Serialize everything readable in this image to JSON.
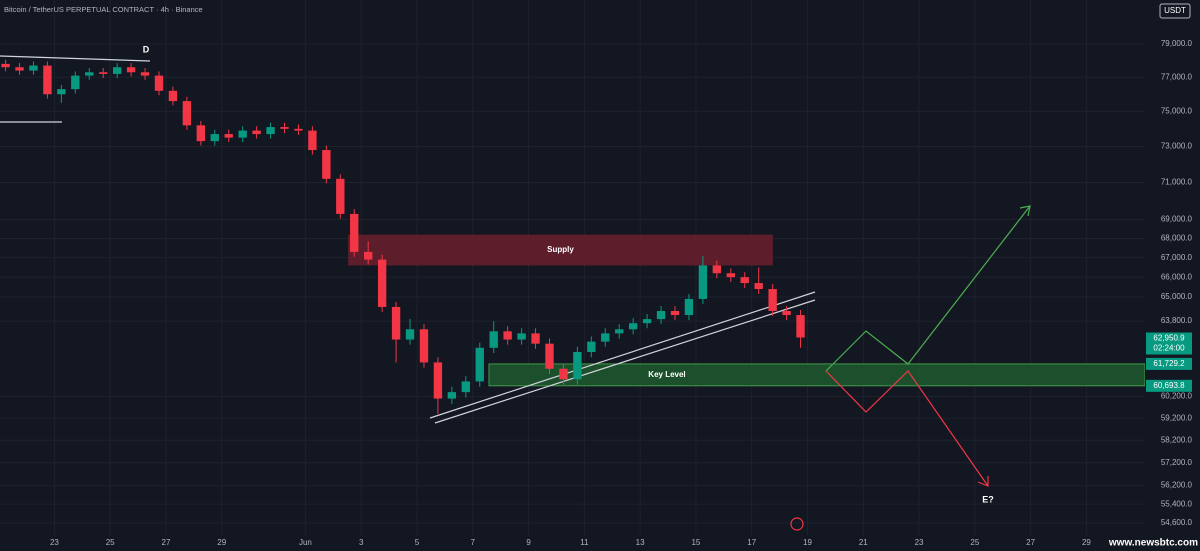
{
  "chart_data": {
    "type": "candlestick",
    "title": "Bitcoin / TetherUS PERPETUAL CONTRACT · 4h · Binance",
    "currency": "USDT",
    "watermark": "www.newsbtc.com",
    "log_scale": true,
    "ylim": [
      53890,
      81730
    ],
    "xlim": [
      -1.95,
      39.1
    ],
    "up_color": "#089981",
    "down_color": "#f23645",
    "yticks": [
      {
        "value": 79000,
        "label": "79,000.0"
      },
      {
        "value": 77000,
        "label": "77,000.0"
      },
      {
        "value": 75000,
        "label": "75,000.0"
      },
      {
        "value": 73000,
        "label": "73,000.0"
      },
      {
        "value": 71000,
        "label": "71,000.0"
      },
      {
        "value": 69000,
        "label": "69,000.0"
      },
      {
        "value": 68000,
        "label": "68,000.0"
      },
      {
        "value": 67000,
        "label": "67,000.0"
      },
      {
        "value": 66000,
        "label": "66,000.0"
      },
      {
        "value": 65000,
        "label": "65,000.0"
      },
      {
        "value": 63800,
        "label": "63,800.0"
      },
      {
        "value": 60200,
        "label": "60,200.0"
      },
      {
        "value": 59200,
        "label": "59,200.0"
      },
      {
        "value": 58200,
        "label": "58,200.0"
      },
      {
        "value": 57200,
        "label": "57,200.0"
      },
      {
        "value": 56200,
        "label": "56,200.0"
      },
      {
        "value": 55400,
        "label": "55,400.0"
      },
      {
        "value": 54600,
        "label": "54,600.0"
      }
    ],
    "xticks": [
      {
        "value": 0,
        "label": "23"
      },
      {
        "value": 2,
        "label": "25"
      },
      {
        "value": 4,
        "label": "27"
      },
      {
        "value": 6,
        "label": "29"
      },
      {
        "value": 9,
        "label": "Jun"
      },
      {
        "value": 11,
        "label": "3"
      },
      {
        "value": 13,
        "label": "5"
      },
      {
        "value": 15,
        "label": "7"
      },
      {
        "value": 17,
        "label": "9"
      },
      {
        "value": 19,
        "label": "11"
      },
      {
        "value": 21,
        "label": "13"
      },
      {
        "value": 23,
        "label": "15"
      },
      {
        "value": 25,
        "label": "17"
      },
      {
        "value": 27,
        "label": "19"
      },
      {
        "value": 29,
        "label": "21"
      },
      {
        "value": 31,
        "label": "23"
      },
      {
        "value": 33,
        "label": "25"
      },
      {
        "value": 35,
        "label": "27"
      },
      {
        "value": 37,
        "label": "29"
      }
    ],
    "x": [
      -1.75,
      -1.25,
      -0.75,
      -0.25,
      0.25,
      0.75,
      1.25,
      1.75,
      2.25,
      2.75,
      3.25,
      3.75,
      4.25,
      4.75,
      5.25,
      5.75,
      6.25,
      6.75,
      7.25,
      7.75,
      8.25,
      8.75,
      9.25,
      9.75,
      10.25,
      10.75,
      11.25,
      11.75,
      12.25,
      12.75,
      13.25,
      13.75,
      14.25,
      14.75,
      15.25,
      15.75,
      16.25,
      16.75,
      17.25,
      17.75,
      18.25,
      18.75,
      19.25,
      19.75,
      20.25,
      20.75,
      21.25,
      21.75,
      22.25,
      22.75,
      23.25,
      23.75,
      24.25,
      24.75,
      25.25,
      25.75,
      26.25,
      26.75
    ],
    "candles": [
      [
        77800,
        78050,
        77350,
        77600
      ],
      [
        77600,
        77850,
        77150,
        77400
      ],
      [
        77400,
        77950,
        77150,
        77700
      ],
      [
        77700,
        77950,
        75750,
        76000
      ],
      [
        76000,
        76550,
        75500,
        76300
      ],
      [
        76300,
        77350,
        76050,
        77100
      ],
      [
        77100,
        77550,
        76850,
        77300
      ],
      [
        77300,
        77550,
        76950,
        77200
      ],
      [
        77200,
        77850,
        76950,
        77600
      ],
      [
        77600,
        77850,
        77050,
        77300
      ],
      [
        77300,
        77550,
        76850,
        77100
      ],
      [
        77100,
        77350,
        75950,
        76200
      ],
      [
        76200,
        76450,
        75350,
        75600
      ],
      [
        75600,
        75850,
        73950,
        74200
      ],
      [
        74200,
        74450,
        73050,
        73300
      ],
      [
        73300,
        73950,
        73050,
        73700
      ],
      [
        73700,
        73950,
        73250,
        73500
      ],
      [
        73500,
        74150,
        73250,
        73900
      ],
      [
        73900,
        74150,
        73450,
        73700
      ],
      [
        73700,
        74350,
        73450,
        74100
      ],
      [
        74100,
        74350,
        73750,
        74000
      ],
      [
        74000,
        74250,
        73650,
        73900
      ],
      [
        73900,
        74150,
        72550,
        72800
      ],
      [
        72800,
        73050,
        70950,
        71200
      ],
      [
        71200,
        71450,
        69050,
        69300
      ],
      [
        69300,
        69550,
        67050,
        67300
      ],
      [
        67300,
        67850,
        66650,
        66900
      ],
      [
        66900,
        67150,
        64250,
        64500
      ],
      [
        64500,
        64750,
        61800,
        62900
      ],
      [
        62900,
        63900,
        62650,
        63400
      ],
      [
        63400,
        63650,
        61550,
        61800
      ],
      [
        61800,
        62050,
        59400,
        60100
      ],
      [
        60100,
        60650,
        59850,
        60400
      ],
      [
        60400,
        61150,
        60150,
        60900
      ],
      [
        60900,
        62750,
        60650,
        62500
      ],
      [
        62500,
        63800,
        62250,
        63300
      ],
      [
        63300,
        63550,
        62650,
        62900
      ],
      [
        62900,
        63450,
        62650,
        63200
      ],
      [
        63200,
        63450,
        62450,
        62700
      ],
      [
        62700,
        62950,
        61250,
        61500
      ],
      [
        61500,
        61750,
        60750,
        61000
      ],
      [
        61000,
        62550,
        60750,
        62300
      ],
      [
        62300,
        63050,
        62050,
        62800
      ],
      [
        62800,
        63450,
        62550,
        63200
      ],
      [
        63200,
        63650,
        62950,
        63400
      ],
      [
        63400,
        63950,
        63150,
        63700
      ],
      [
        63700,
        64150,
        63450,
        63900
      ],
      [
        63900,
        64550,
        63650,
        64300
      ],
      [
        64300,
        64550,
        63850,
        64100
      ],
      [
        64100,
        65150,
        63850,
        64900
      ],
      [
        64900,
        67100,
        64650,
        66600
      ],
      [
        66600,
        66850,
        65950,
        66200
      ],
      [
        66200,
        66450,
        65750,
        66000
      ],
      [
        66000,
        66250,
        65450,
        65700
      ],
      [
        65700,
        66500,
        65150,
        65400
      ],
      [
        65400,
        65650,
        64050,
        64300
      ],
      [
        64300,
        64550,
        63850,
        64100
      ],
      [
        64100,
        64350,
        62500,
        63000
      ]
    ],
    "zones": [
      {
        "label": "Supply",
        "top": 68200,
        "bottom": 66600,
        "start": 10.53,
        "end": 25.76,
        "color": "#6b1f2b"
      },
      {
        "label": "Key Level",
        "top": 61729.2,
        "bottom": 60693.8,
        "start": 15.58,
        "end": 39.1,
        "color": "#1f5a2e"
      }
    ],
    "price_labels": [
      {
        "value": 62950.9,
        "label": "62,950.9"
      },
      {
        "value": 61729.2,
        "label": "61,729.2"
      },
      {
        "value": 60693.8,
        "label": "60,693.8"
      }
    ],
    "countdown": "02:24:00",
    "annotations": [
      "D",
      "E?"
    ]
  }
}
